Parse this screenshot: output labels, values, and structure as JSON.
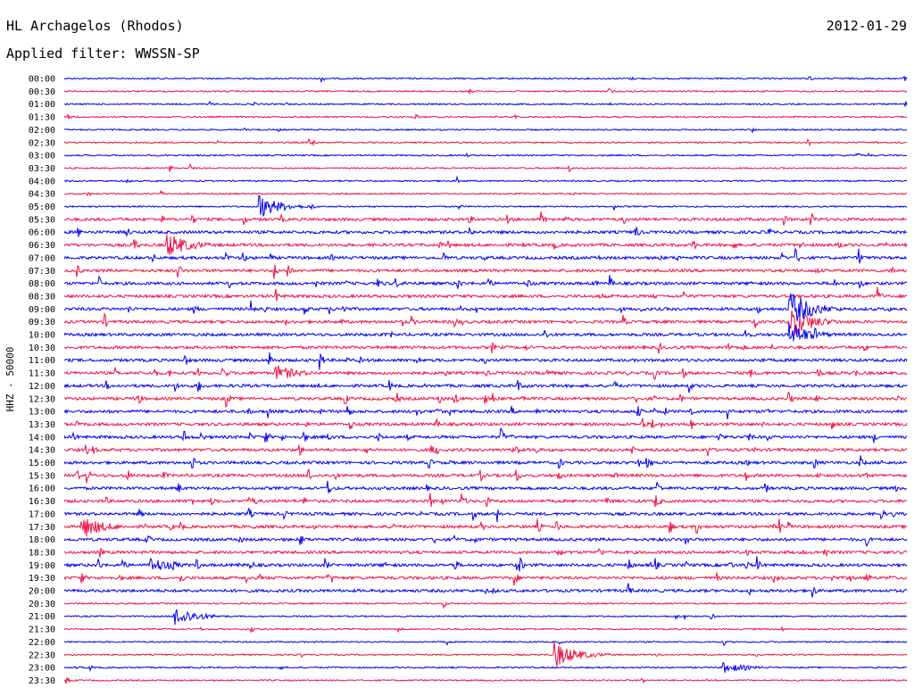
{
  "header": {
    "station": "HL Archagelos (Rhodos)",
    "date": "2012-01-29",
    "filter": "Applied filter: WWSSN-SP"
  },
  "chart_data": {
    "type": "line",
    "ylabel": "HHZ - 50000",
    "colors": [
      "#0000ee",
      "#ee1144"
    ],
    "rows": [
      "00:00",
      "00:30",
      "01:00",
      "01:30",
      "02:00",
      "02:30",
      "03:00",
      "03:30",
      "04:00",
      "04:30",
      "05:00",
      "05:30",
      "06:00",
      "06:30",
      "07:00",
      "07:30",
      "08:00",
      "08:30",
      "09:00",
      "09:30",
      "10:00",
      "10:30",
      "11:00",
      "11:30",
      "12:00",
      "12:30",
      "13:00",
      "13:30",
      "14:00",
      "14:30",
      "15:00",
      "15:30",
      "16:00",
      "16:30",
      "17:00",
      "17:30",
      "18:00",
      "18:30",
      "19:00",
      "19:30",
      "20:00",
      "20:30",
      "21:00",
      "21:30",
      "22:00",
      "22:30",
      "23:00",
      "23:30"
    ],
    "events": [
      {
        "row": "05:00",
        "t": 0.23,
        "a": 14
      },
      {
        "row": "06:30",
        "t": 0.12,
        "a": 16
      },
      {
        "row": "09:00",
        "t": 0.86,
        "a": 22
      },
      {
        "row": "09:30",
        "t": 0.86,
        "a": 20
      },
      {
        "row": "10:00",
        "t": 0.86,
        "a": 14
      },
      {
        "row": "11:30",
        "t": 0.25,
        "a": 10
      },
      {
        "row": "17:30",
        "t": 0.02,
        "a": 14
      },
      {
        "row": "19:00",
        "t": 0.1,
        "a": 10
      },
      {
        "row": "21:00",
        "t": 0.13,
        "a": 12
      },
      {
        "row": "22:30",
        "t": 0.58,
        "a": 16
      },
      {
        "row": "23:00",
        "t": 0.78,
        "a": 7
      }
    ]
  }
}
